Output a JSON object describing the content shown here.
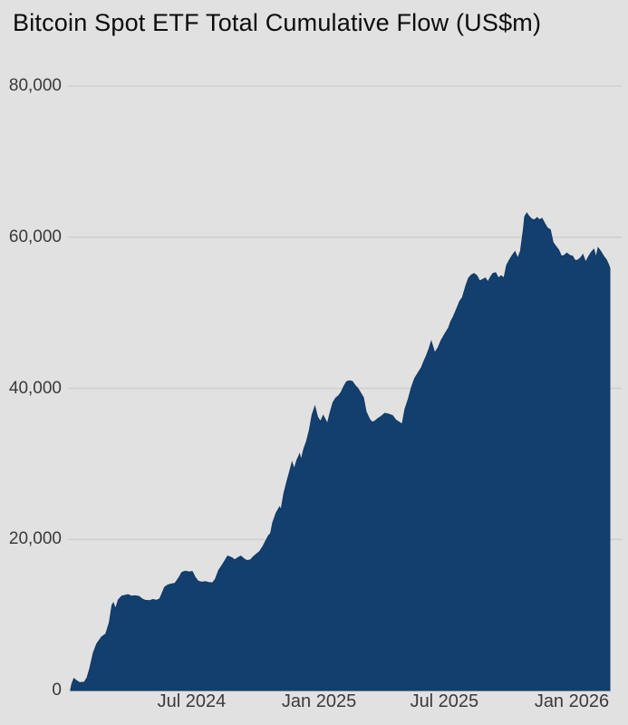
{
  "title": "Bitcoin Spot ETF Total Cumulative Flow (US$m)",
  "colors": {
    "background": "#e1e1e1",
    "area_fill": "#123f6d",
    "area_stroke": "#113a66",
    "gridline": "#cfcfcf",
    "axis_text": "#3a3a3a",
    "title_text": "#0c0c0c"
  },
  "chart_data": {
    "type": "area",
    "title": "Bitcoin Spot ETF Total Cumulative Flow (US$m)",
    "xlabel": "",
    "ylabel": "",
    "legend": "none",
    "grid": "horizontal",
    "x_axis": {
      "type": "date",
      "min": "2024-01-07",
      "max": "2026-02-25",
      "ticks": [
        {
          "date": "2024-07-01",
          "label": "Jul 2024"
        },
        {
          "date": "2025-01-01",
          "label": "Jan 2025"
        },
        {
          "date": "2025-07-01",
          "label": "Jul 2025"
        },
        {
          "date": "2026-01-01",
          "label": "Jan 2026"
        }
      ]
    },
    "y_axis": {
      "min": 0,
      "max": 80000,
      "ticks": [
        {
          "value": 0,
          "label": "0"
        },
        {
          "value": 20000,
          "label": "20,000"
        },
        {
          "value": 40000,
          "label": "40,000"
        },
        {
          "value": 60000,
          "label": "60,000"
        },
        {
          "value": 80000,
          "label": "80,000"
        }
      ]
    },
    "series": [
      {
        "name": "Total Cumulative Flow",
        "unit": "US$m",
        "points": [
          [
            "2024-01-08",
            0
          ],
          [
            "2024-01-10",
            900
          ],
          [
            "2024-01-13",
            1600
          ],
          [
            "2024-01-17",
            1300
          ],
          [
            "2024-01-21",
            1050
          ],
          [
            "2024-01-28",
            1100
          ],
          [
            "2024-02-01",
            1700
          ],
          [
            "2024-02-05",
            3000
          ],
          [
            "2024-02-10",
            5000
          ],
          [
            "2024-02-15",
            6200
          ],
          [
            "2024-02-22",
            7100
          ],
          [
            "2024-02-28",
            7500
          ],
          [
            "2024-03-04",
            9000
          ],
          [
            "2024-03-08",
            11300
          ],
          [
            "2024-03-10",
            11600
          ],
          [
            "2024-03-13",
            10800
          ],
          [
            "2024-03-17",
            12000
          ],
          [
            "2024-03-22",
            12500
          ],
          [
            "2024-03-27",
            12600
          ],
          [
            "2024-03-31",
            12700
          ],
          [
            "2024-04-05",
            12500
          ],
          [
            "2024-04-11",
            12550
          ],
          [
            "2024-04-16",
            12450
          ],
          [
            "2024-04-21",
            12100
          ],
          [
            "2024-04-25",
            11950
          ],
          [
            "2024-05-01",
            11900
          ],
          [
            "2024-05-06",
            12050
          ],
          [
            "2024-05-11",
            11950
          ],
          [
            "2024-05-16",
            12150
          ],
          [
            "2024-05-19",
            12800
          ],
          [
            "2024-05-23",
            13700
          ],
          [
            "2024-05-28",
            14000
          ],
          [
            "2024-06-02",
            14100
          ],
          [
            "2024-06-07",
            14200
          ],
          [
            "2024-06-13",
            15000
          ],
          [
            "2024-06-17",
            15650
          ],
          [
            "2024-06-22",
            15800
          ],
          [
            "2024-06-27",
            15700
          ],
          [
            "2024-07-02",
            15750
          ],
          [
            "2024-07-06",
            15000
          ],
          [
            "2024-07-10",
            14500
          ],
          [
            "2024-07-15",
            14350
          ],
          [
            "2024-07-21",
            14400
          ],
          [
            "2024-07-26",
            14300
          ],
          [
            "2024-07-31",
            14250
          ],
          [
            "2024-08-04",
            14700
          ],
          [
            "2024-08-09",
            15900
          ],
          [
            "2024-08-14",
            16600
          ],
          [
            "2024-08-18",
            17200
          ],
          [
            "2024-08-22",
            17800
          ],
          [
            "2024-08-28",
            17600
          ],
          [
            "2024-09-01",
            17300
          ],
          [
            "2024-09-06",
            17600
          ],
          [
            "2024-09-10",
            17800
          ],
          [
            "2024-09-15",
            17400
          ],
          [
            "2024-09-19",
            17200
          ],
          [
            "2024-09-24",
            17300
          ],
          [
            "2024-09-28",
            17700
          ],
          [
            "2024-10-03",
            18100
          ],
          [
            "2024-10-07",
            18400
          ],
          [
            "2024-10-12",
            19100
          ],
          [
            "2024-10-16",
            19800
          ],
          [
            "2024-10-20",
            20500
          ],
          [
            "2024-10-23",
            20800
          ],
          [
            "2024-10-26",
            22200
          ],
          [
            "2024-10-31",
            23500
          ],
          [
            "2024-11-05",
            24300
          ],
          [
            "2024-11-07",
            23900
          ],
          [
            "2024-11-11",
            26000
          ],
          [
            "2024-11-15",
            27500
          ],
          [
            "2024-11-19",
            28800
          ],
          [
            "2024-11-23",
            30200
          ],
          [
            "2024-11-26",
            29300
          ],
          [
            "2024-11-30",
            30500
          ],
          [
            "2024-12-04",
            31300
          ],
          [
            "2024-12-06",
            30500
          ],
          [
            "2024-12-10",
            32000
          ],
          [
            "2024-12-14",
            33000
          ],
          [
            "2024-12-18",
            34500
          ],
          [
            "2024-12-22",
            36500
          ],
          [
            "2024-12-26",
            37600
          ],
          [
            "2024-12-30",
            36200
          ],
          [
            "2025-01-03",
            35600
          ],
          [
            "2025-01-07",
            36400
          ],
          [
            "2025-01-11",
            35700
          ],
          [
            "2025-01-13",
            35300
          ],
          [
            "2025-01-17",
            36800
          ],
          [
            "2025-01-21",
            38100
          ],
          [
            "2025-01-25",
            38700
          ],
          [
            "2025-01-29",
            39000
          ],
          [
            "2025-02-02",
            39500
          ],
          [
            "2025-02-06",
            40300
          ],
          [
            "2025-02-10",
            40900
          ],
          [
            "2025-02-14",
            41000
          ],
          [
            "2025-02-18",
            40900
          ],
          [
            "2025-02-22",
            40400
          ],
          [
            "2025-02-26",
            40000
          ],
          [
            "2025-03-02",
            39400
          ],
          [
            "2025-03-06",
            38800
          ],
          [
            "2025-03-10",
            36900
          ],
          [
            "2025-03-15",
            35900
          ],
          [
            "2025-03-19",
            35500
          ],
          [
            "2025-03-23",
            35700
          ],
          [
            "2025-03-27",
            36000
          ],
          [
            "2025-04-01",
            36300
          ],
          [
            "2025-04-06",
            36700
          ],
          [
            "2025-04-11",
            36600
          ],
          [
            "2025-04-17",
            36400
          ],
          [
            "2025-04-22",
            35800
          ],
          [
            "2025-04-27",
            35500
          ],
          [
            "2025-05-01",
            35250
          ],
          [
            "2025-05-05",
            37200
          ],
          [
            "2025-05-10",
            38600
          ],
          [
            "2025-05-14",
            40000
          ],
          [
            "2025-05-19",
            41300
          ],
          [
            "2025-05-23",
            41900
          ],
          [
            "2025-05-29",
            42800
          ],
          [
            "2025-06-01",
            43500
          ],
          [
            "2025-06-05",
            44300
          ],
          [
            "2025-06-09",
            45300
          ],
          [
            "2025-06-12",
            46200
          ],
          [
            "2025-06-17",
            44700
          ],
          [
            "2025-06-22",
            45400
          ],
          [
            "2025-06-26",
            46300
          ],
          [
            "2025-07-01",
            47100
          ],
          [
            "2025-07-07",
            48000
          ],
          [
            "2025-07-10",
            48800
          ],
          [
            "2025-07-14",
            49500
          ],
          [
            "2025-07-20",
            50800
          ],
          [
            "2025-07-23",
            51500
          ],
          [
            "2025-07-27",
            52000
          ],
          [
            "2025-08-01",
            53600
          ],
          [
            "2025-08-05",
            54600
          ],
          [
            "2025-08-09",
            55000
          ],
          [
            "2025-08-13",
            55200
          ],
          [
            "2025-08-17",
            54900
          ],
          [
            "2025-08-21",
            54200
          ],
          [
            "2025-08-25",
            54400
          ],
          [
            "2025-08-29",
            54600
          ],
          [
            "2025-09-02",
            54100
          ],
          [
            "2025-09-06",
            54800
          ],
          [
            "2025-09-09",
            55200
          ],
          [
            "2025-09-13",
            55300
          ],
          [
            "2025-09-17",
            54600
          ],
          [
            "2025-09-21",
            54900
          ],
          [
            "2025-09-25",
            54600
          ],
          [
            "2025-09-29",
            56300
          ],
          [
            "2025-10-03",
            57000
          ],
          [
            "2025-10-07",
            57600
          ],
          [
            "2025-10-11",
            58100
          ],
          [
            "2025-10-15",
            57200
          ],
          [
            "2025-10-19",
            58200
          ],
          [
            "2025-10-23",
            61000
          ],
          [
            "2025-10-25",
            62700
          ],
          [
            "2025-10-28",
            63200
          ],
          [
            "2025-10-31",
            62800
          ],
          [
            "2025-11-04",
            62400
          ],
          [
            "2025-11-08",
            62300
          ],
          [
            "2025-11-12",
            62600
          ],
          [
            "2025-11-15",
            62300
          ],
          [
            "2025-11-19",
            62500
          ],
          [
            "2025-11-23",
            61800
          ],
          [
            "2025-11-27",
            61200
          ],
          [
            "2025-12-01",
            61000
          ],
          [
            "2025-12-05",
            59300
          ],
          [
            "2025-12-09",
            58800
          ],
          [
            "2025-12-13",
            58300
          ],
          [
            "2025-12-17",
            57500
          ],
          [
            "2025-12-21",
            57600
          ],
          [
            "2025-12-25",
            57900
          ],
          [
            "2025-12-29",
            57600
          ],
          [
            "2026-01-02",
            57500
          ],
          [
            "2026-01-06",
            56900
          ],
          [
            "2026-01-10",
            57000
          ],
          [
            "2026-01-14",
            57300
          ],
          [
            "2026-01-17",
            57700
          ],
          [
            "2026-01-21",
            56700
          ],
          [
            "2026-01-25",
            57400
          ],
          [
            "2026-01-29",
            58000
          ],
          [
            "2026-02-02",
            58400
          ],
          [
            "2026-02-05",
            57300
          ],
          [
            "2026-02-08",
            58600
          ],
          [
            "2026-02-12",
            58100
          ],
          [
            "2026-02-16",
            57500
          ],
          [
            "2026-02-20",
            57000
          ],
          [
            "2026-02-23",
            56400
          ],
          [
            "2026-02-25",
            55900
          ]
        ]
      }
    ]
  }
}
